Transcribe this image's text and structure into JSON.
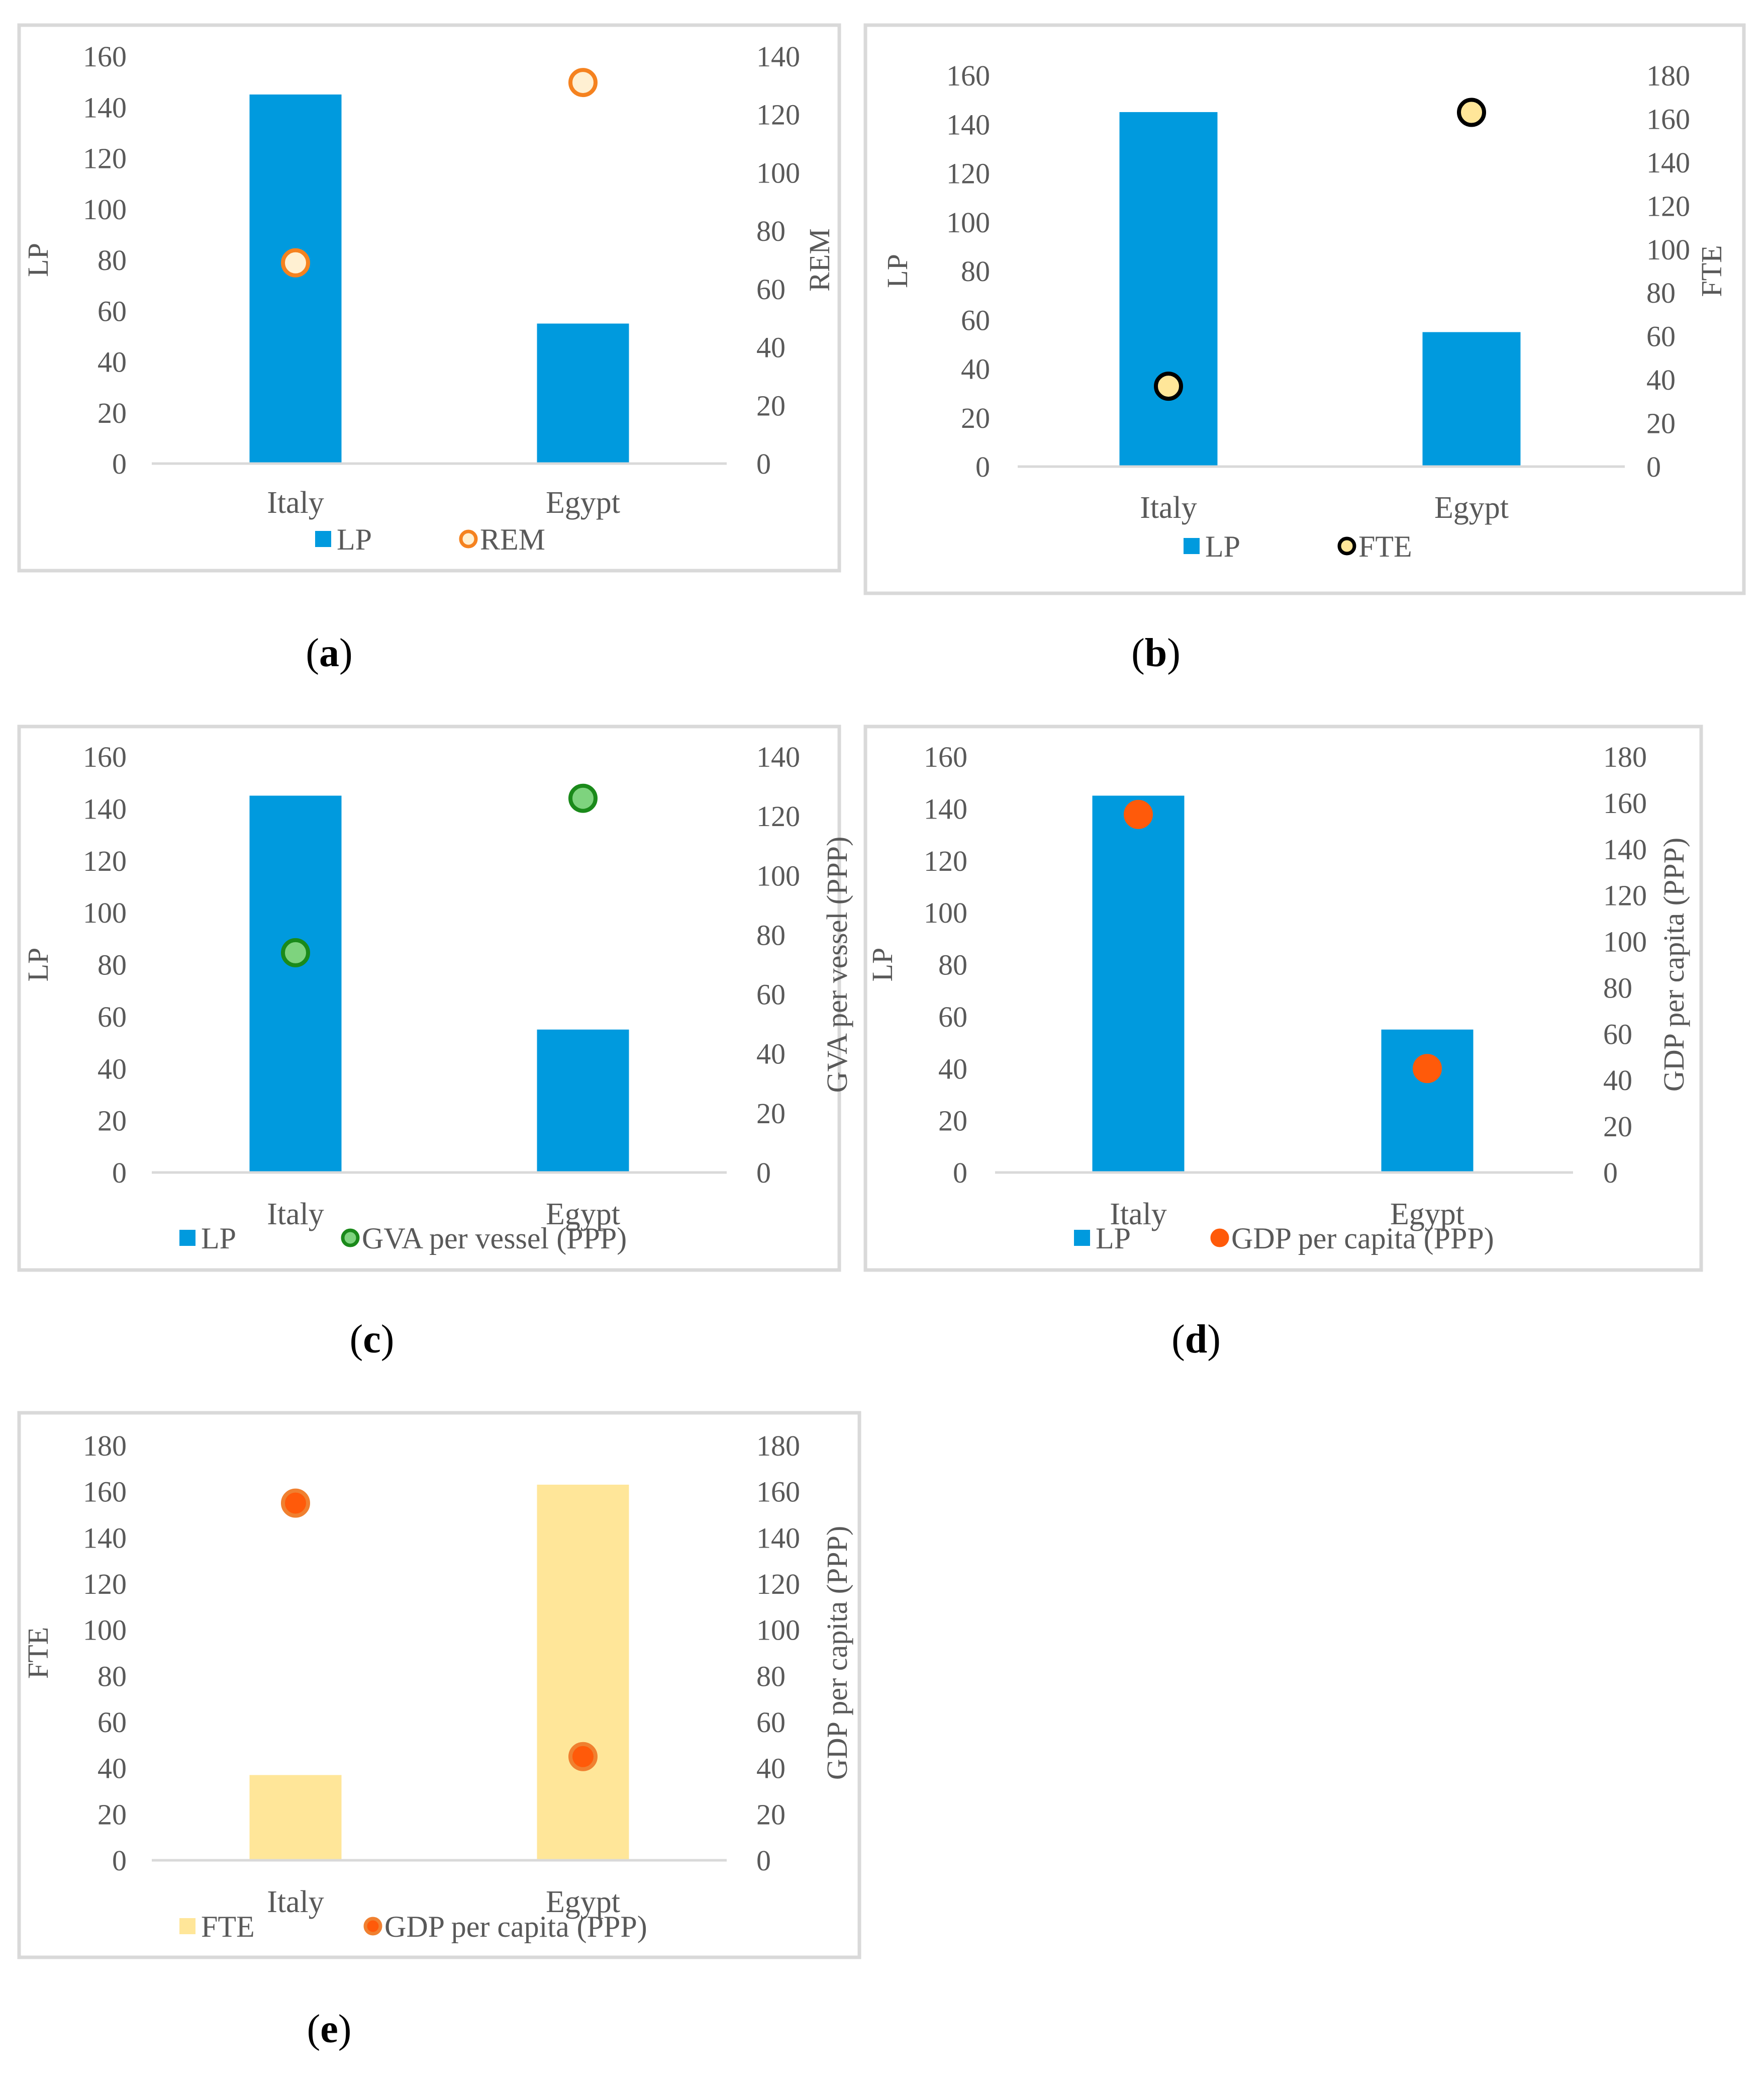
{
  "chart_data": [
    {
      "type": "bar",
      "panel": "(a)",
      "panel_paren_open": "(",
      "panel_letter": "a",
      "panel_paren_close": ")",
      "categories": [
        "Italy",
        "Egypt"
      ],
      "series": [
        {
          "name": "LP",
          "kind": "bar",
          "axis": "left",
          "values": [
            145,
            55
          ],
          "color": "#009ADE"
        },
        {
          "name": "REM",
          "kind": "marker",
          "axis": "right",
          "values": [
            69,
            131
          ],
          "color": "#F5821F",
          "fill": "#FFF0D2",
          "edge": "#F5821F"
        }
      ],
      "ylabel": "LP",
      "y2label": "REM",
      "ylim": [
        0,
        160
      ],
      "y2lim": [
        0,
        140
      ],
      "yticks": [
        "0",
        "20",
        "40",
        "60",
        "80",
        "100",
        "120",
        "140",
        "160"
      ],
      "y2ticks": [
        "0",
        "20",
        "40",
        "60",
        "80",
        "100",
        "120",
        "140"
      ],
      "legend": [
        "LP",
        "REM"
      ]
    },
    {
      "type": "bar",
      "panel": "(b)",
      "panel_paren_open": "(",
      "panel_letter": "b",
      "panel_paren_close": ")",
      "categories": [
        "Italy",
        "Egypt"
      ],
      "series": [
        {
          "name": "LP",
          "kind": "bar",
          "axis": "left",
          "values": [
            145,
            55
          ],
          "color": "#009ADE"
        },
        {
          "name": "FTE",
          "kind": "marker",
          "axis": "right",
          "values": [
            37,
            163
          ],
          "color": "#000000",
          "fill": "#FFE699",
          "edge": "#000000"
        }
      ],
      "ylabel": "LP",
      "y2label": "FTE",
      "ylim": [
        0,
        160
      ],
      "y2lim": [
        0,
        180
      ],
      "yticks": [
        "0",
        "20",
        "40",
        "60",
        "80",
        "100",
        "120",
        "140",
        "160"
      ],
      "y2ticks": [
        "0",
        "20",
        "40",
        "60",
        "80",
        "100",
        "120",
        "140",
        "160",
        "180"
      ],
      "legend": [
        "LP",
        "FTE"
      ]
    },
    {
      "type": "bar",
      "panel": "(c)",
      "panel_paren_open": "(",
      "panel_letter": "c",
      "panel_paren_close": ")",
      "categories": [
        "Italy",
        "Egypt"
      ],
      "series": [
        {
          "name": "LP",
          "kind": "bar",
          "axis": "left",
          "values": [
            145,
            55
          ],
          "color": "#009ADE"
        },
        {
          "name": "GVA per vessel (PPP)",
          "kind": "marker",
          "axis": "right",
          "values": [
            74,
            126
          ],
          "color": "#1A8A1A",
          "fill": "#7ED37E",
          "edge": "#1A8A1A"
        }
      ],
      "ylabel": "LP",
      "y2label": "GVA per vessel (PPP)",
      "ylim": [
        0,
        160
      ],
      "y2lim": [
        0,
        140
      ],
      "yticks": [
        "0",
        "20",
        "40",
        "60",
        "80",
        "100",
        "120",
        "140",
        "160"
      ],
      "y2ticks": [
        "0",
        "20",
        "40",
        "60",
        "80",
        "100",
        "120",
        "140"
      ],
      "legend": [
        "LP",
        "GVA per vessel (PPP)"
      ]
    },
    {
      "type": "bar",
      "panel": "(d)",
      "panel_paren_open": "(",
      "panel_letter": "d",
      "panel_paren_close": ")",
      "categories": [
        "Italy",
        "Egypt"
      ],
      "series": [
        {
          "name": "LP",
          "kind": "bar",
          "axis": "left",
          "values": [
            145,
            55
          ],
          "color": "#009ADE"
        },
        {
          "name": "GDP per capita (PPP)",
          "kind": "marker",
          "axis": "right",
          "values": [
            155,
            45
          ],
          "color": "#FF5A0A",
          "fill": "#FF5A0A",
          "edge": "#FF5A0A"
        }
      ],
      "ylabel": "LP",
      "y2label": "GDP per capita (PPP)",
      "ylim": [
        0,
        160
      ],
      "y2lim": [
        0,
        180
      ],
      "yticks": [
        "0",
        "20",
        "40",
        "60",
        "80",
        "100",
        "120",
        "140",
        "160"
      ],
      "y2ticks": [
        "0",
        "20",
        "40",
        "60",
        "80",
        "100",
        "120",
        "140",
        "160",
        "180"
      ],
      "legend": [
        "LP",
        "GDP per capita (PPP)"
      ]
    },
    {
      "type": "bar",
      "panel": "(e)",
      "panel_paren_open": "(",
      "panel_letter": "e",
      "panel_paren_close": ")",
      "categories": [
        "Italy",
        "Egypt"
      ],
      "series": [
        {
          "name": "FTE",
          "kind": "bar",
          "axis": "left",
          "values": [
            37,
            163
          ],
          "color": "#FFE699"
        },
        {
          "name": "GDP per capita (PPP)",
          "kind": "marker",
          "axis": "right",
          "values": [
            155,
            45
          ],
          "color": "#FF5A0A",
          "fill": "#FF5A0A",
          "edge": "#F08030"
        }
      ],
      "ylabel": "FTE",
      "y2label": "GDP per capita (PPP)",
      "ylim": [
        0,
        180
      ],
      "y2lim": [
        0,
        180
      ],
      "yticks": [
        "0",
        "20",
        "40",
        "60",
        "80",
        "100",
        "120",
        "140",
        "160",
        "180"
      ],
      "y2ticks": [
        "0",
        "20",
        "40",
        "60",
        "80",
        "100",
        "120",
        "140",
        "160",
        "180"
      ],
      "legend": [
        "FTE",
        "GDP per capita (PPP)"
      ]
    }
  ]
}
